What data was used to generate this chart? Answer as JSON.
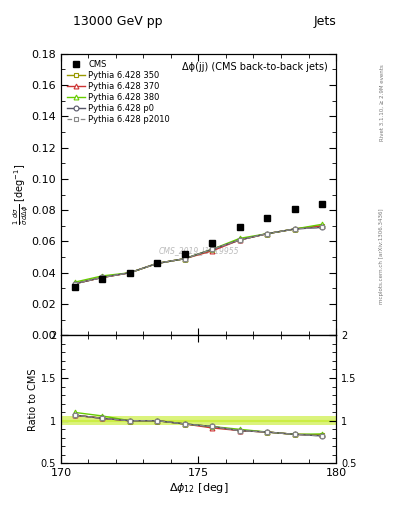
{
  "title_top": "13000 GeV pp",
  "title_right": "Jets",
  "panel_title": "Δϕ(jj) (CMS back-to-back jets)",
  "ylabel_main": "$\\frac{1}{\\bar{\\sigma}}\\frac{d\\sigma}{d\\Delta\\phi}$ [deg$^{-1}$]",
  "ylabel_ratio": "Ratio to CMS",
  "xlabel": "$\\Delta\\phi_{12}$ [deg]",
  "xlim": [
    170,
    180
  ],
  "ylim_main": [
    0.0,
    0.18
  ],
  "ylim_ratio": [
    0.5,
    2.0
  ],
  "watermark": "CMS_2019_I1719955",
  "right_label_top": "Rivet 3.1.10, ≥ 2.9M events",
  "right_label_main": "mcplots.cern.ch [arXiv:1306.3436]",
  "x_data": [
    170.5,
    171.5,
    172.5,
    173.5,
    174.5,
    175.5,
    176.5,
    177.5,
    178.5,
    179.5
  ],
  "cms_data": [
    0.031,
    0.036,
    0.04,
    0.046,
    0.052,
    0.059,
    0.069,
    0.075,
    0.081,
    0.084
  ],
  "py350_data": [
    0.033,
    0.037,
    0.04,
    0.046,
    0.049,
    0.055,
    0.061,
    0.065,
    0.068,
    0.07
  ],
  "py370_data": [
    0.033,
    0.037,
    0.04,
    0.046,
    0.049,
    0.054,
    0.061,
    0.065,
    0.068,
    0.07
  ],
  "py380_data": [
    0.034,
    0.038,
    0.04,
    0.046,
    0.049,
    0.055,
    0.062,
    0.065,
    0.068,
    0.071
  ],
  "py_p0_data": [
    0.033,
    0.037,
    0.04,
    0.046,
    0.049,
    0.055,
    0.061,
    0.065,
    0.068,
    0.069
  ],
  "py_p2010_data": [
    0.033,
    0.037,
    0.04,
    0.046,
    0.049,
    0.055,
    0.061,
    0.065,
    0.068,
    0.069
  ],
  "color_350": "#999900",
  "color_370": "#cc3333",
  "color_380": "#66cc00",
  "color_p0": "#555566",
  "color_p2010": "#888888",
  "ratio_350": [
    1.065,
    1.028,
    1.0,
    1.0,
    0.962,
    0.932,
    0.884,
    0.867,
    0.84,
    0.833
  ],
  "ratio_370": [
    1.065,
    1.028,
    1.0,
    1.0,
    0.962,
    0.915,
    0.884,
    0.867,
    0.84,
    0.833
  ],
  "ratio_380": [
    1.097,
    1.056,
    1.0,
    1.0,
    0.962,
    0.932,
    0.899,
    0.867,
    0.84,
    0.845
  ],
  "ratio_p0": [
    1.065,
    1.028,
    1.0,
    1.0,
    0.962,
    0.932,
    0.884,
    0.867,
    0.84,
    0.821
  ],
  "ratio_p2010": [
    1.065,
    1.028,
    1.0,
    1.0,
    0.962,
    0.932,
    0.884,
    0.867,
    0.84,
    0.821
  ],
  "band_color": "#ccee44",
  "band_lo": 0.95,
  "band_hi": 1.05
}
